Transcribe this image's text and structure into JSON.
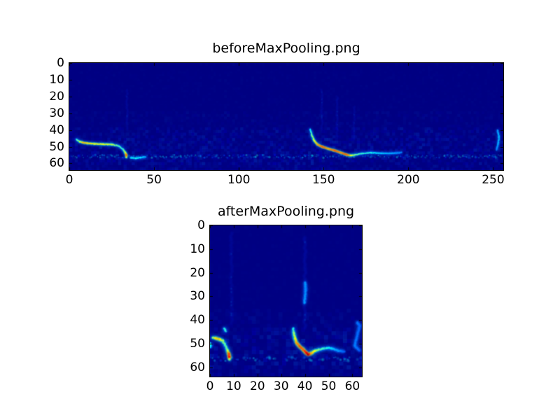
{
  "figure": {
    "background": "#ffffff",
    "text_color": "#000000"
  },
  "chart_data": [
    {
      "type": "heatmap",
      "title": "beforeMaxPooling.png",
      "x_range": [
        0,
        256
      ],
      "y_range": [
        0,
        64
      ],
      "x_ticks": [
        0,
        50,
        100,
        150,
        200,
        250
      ],
      "y_ticks": [
        0,
        10,
        20,
        30,
        40,
        50,
        60
      ],
      "colormap": "jet",
      "bg_color": "#000082",
      "grid": false,
      "legend": false,
      "noise": {
        "seed": 11,
        "cell": 1.6,
        "alpha": 0.22,
        "profile": [
          [
            0,
            0.15
          ],
          [
            28,
            0.35
          ],
          [
            38,
            0.8
          ],
          [
            44,
            1.0
          ],
          [
            60,
            0.7
          ],
          [
            63,
            0.5
          ]
        ]
      },
      "bands": [
        {
          "y": 55.8,
          "x0": 0,
          "x1": 256,
          "t_min": 0.14,
          "t_max": 0.42
        }
      ],
      "smudges": [
        {
          "x": 34,
          "y0": 16,
          "y1": 40,
          "t": 0.1
        },
        {
          "x": 149,
          "y0": 16,
          "y1": 40,
          "t": 0.1
        },
        {
          "x": 158,
          "y0": 20,
          "y1": 44,
          "t": 0.11
        },
        {
          "x": 168,
          "y0": 26,
          "y1": 46,
          "t": 0.09
        }
      ],
      "features": [
        {
          "name": "call-1-horizontal-streak",
          "points": [
            [
              4,
              45.5,
              0.4
            ],
            [
              6,
              47,
              0.55
            ],
            [
              8,
              47.5,
              0.7
            ],
            [
              11,
              48,
              0.66
            ],
            [
              15,
              48.3,
              0.63
            ],
            [
              20,
              48.5,
              0.62
            ],
            [
              25,
              48.7,
              0.58
            ],
            [
              29,
              49.5,
              0.45
            ],
            [
              31.5,
              51.5,
              0.42
            ],
            [
              33,
              53.5,
              0.6
            ],
            [
              33.7,
              55.3,
              0.82
            ],
            [
              33.7,
              56.5,
              0.55
            ]
          ]
        },
        {
          "name": "call-2-downsweep-curve",
          "points": [
            [
              142,
              39.5,
              0.35
            ],
            [
              143,
              43,
              0.48
            ],
            [
              144.5,
              46.5,
              0.62
            ],
            [
              146.5,
              48.8,
              0.72
            ],
            [
              149.5,
              50.2,
              0.8
            ],
            [
              153,
              51.3,
              0.72
            ],
            [
              156.5,
              52.3,
              0.8
            ],
            [
              160,
              53.5,
              0.75
            ],
            [
              163.5,
              54.8,
              0.8
            ],
            [
              166,
              55.3,
              0.65
            ],
            [
              169,
              54.8,
              0.48
            ],
            [
              173,
              54,
              0.42
            ],
            [
              178,
              53.6,
              0.4
            ],
            [
              184,
              54,
              0.33
            ],
            [
              190,
              54,
              0.3
            ],
            [
              196,
              53.5,
              0.26
            ]
          ]
        },
        {
          "name": "band-bright-patch",
          "points": [
            [
              36,
              56.5,
              0.36
            ],
            [
              39,
              57,
              0.4
            ],
            [
              42,
              56.5,
              0.36
            ],
            [
              45,
              56,
              0.3
            ]
          ]
        },
        {
          "name": "right-edge-noise",
          "points": [
            [
              252.5,
              40,
              0.28
            ],
            [
              253.5,
              44,
              0.32
            ],
            [
              253,
              48,
              0.3
            ],
            [
              252,
              52,
              0.26
            ]
          ]
        }
      ]
    },
    {
      "type": "heatmap",
      "title": "afterMaxPooling.png",
      "x_range": [
        0,
        64
      ],
      "y_range": [
        0,
        64
      ],
      "x_ticks": [
        0,
        10,
        20,
        30,
        40,
        50,
        60
      ],
      "y_ticks": [
        0,
        10,
        20,
        30,
        40,
        50,
        60
      ],
      "colormap": "jet",
      "bg_color": "#000082",
      "grid": false,
      "legend": false,
      "noise": {
        "seed": 23,
        "cell": 1.6,
        "alpha": 0.22,
        "profile": [
          [
            0,
            0.12
          ],
          [
            34,
            0.45
          ],
          [
            42,
            0.9
          ],
          [
            46,
            1.0
          ],
          [
            60,
            0.7
          ]
        ]
      },
      "bands": [
        {
          "y": 56.5,
          "x0": 0,
          "x1": 64,
          "t_min": 0.14,
          "t_max": 0.4
        }
      ],
      "smudges": [
        {
          "x": 9,
          "y0": 3,
          "y1": 42,
          "t": 0.1
        },
        {
          "x": 40,
          "y0": 5,
          "y1": 44,
          "t": 0.13
        }
      ],
      "features": [
        {
          "name": "pooled-call-1-blob",
          "points": [
            [
              1,
              47.5,
              0.5
            ],
            [
              2.5,
              47.8,
              0.66
            ],
            [
              4,
              48.2,
              0.68
            ],
            [
              5.3,
              48.8,
              0.55
            ],
            [
              6.3,
              50.5,
              0.45
            ],
            [
              7.2,
              52.5,
              0.48
            ],
            [
              7.9,
              54.3,
              0.8
            ],
            [
              8.1,
              55.8,
              0.88
            ],
            [
              8.2,
              57,
              0.5
            ]
          ]
        },
        {
          "name": "pooled-call-1-upper-dot",
          "points": [
            [
              6,
              43.5,
              0.4
            ],
            [
              6.6,
              44.8,
              0.42
            ]
          ]
        },
        {
          "name": "left-edge-noise",
          "points": [
            [
              0.3,
              50,
              0.42
            ],
            [
              0.3,
              51.5,
              0.35
            ]
          ]
        },
        {
          "name": "pooled-call-2-downsweep",
          "points": [
            [
              35,
              43.5,
              0.38
            ],
            [
              35.3,
              45.5,
              0.5
            ],
            [
              35.8,
              47.8,
              0.62
            ],
            [
              36.5,
              49.8,
              0.72
            ],
            [
              37.8,
              51.3,
              0.8
            ],
            [
              39.2,
              52.6,
              0.78
            ],
            [
              40.5,
              53.8,
              0.88
            ],
            [
              41.3,
              54.6,
              0.97
            ],
            [
              42.5,
              54.2,
              0.72
            ],
            [
              44,
              53.2,
              0.62
            ],
            [
              45.8,
              52.6,
              0.48
            ],
            [
              47.5,
              52.2,
              0.44
            ],
            [
              49.5,
              51.8,
              0.4
            ],
            [
              51.5,
              52.2,
              0.33
            ],
            [
              54,
              53,
              0.27
            ],
            [
              56.5,
              53.3,
              0.22
            ]
          ]
        },
        {
          "name": "plume-speckles",
          "points": [
            [
              40,
              24,
              0.28
            ],
            [
              40.3,
              27,
              0.26
            ],
            [
              39.8,
              33,
              0.28
            ]
          ]
        },
        {
          "name": "right-edge-noise",
          "points": [
            [
              62,
              41,
              0.25
            ],
            [
              63,
              42.5,
              0.22
            ],
            [
              61,
              51,
              0.25
            ],
            [
              63,
              53,
              0.22
            ]
          ]
        }
      ]
    }
  ]
}
